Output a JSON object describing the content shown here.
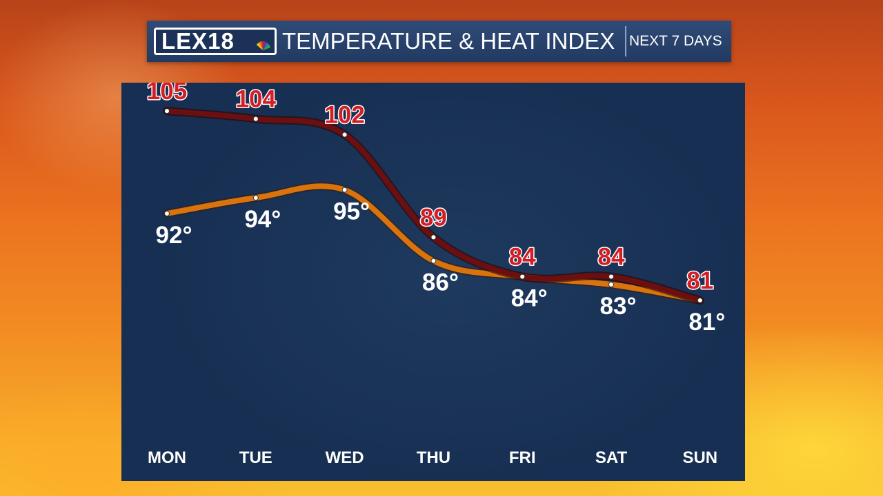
{
  "header": {
    "logo_text": "LEX18",
    "title": "TEMPERATURE & HEAT INDEX",
    "subtitle": "NEXT 7 DAYS"
  },
  "colors": {
    "heat_index_line": "#6b0f10",
    "temperature_line": "#d8730e",
    "heat_index_label": "#d31e26",
    "temperature_label": "#ffffff",
    "panel": "#172f52"
  },
  "chart_data": {
    "type": "line",
    "categories": [
      "MON",
      "TUE",
      "WED",
      "THU",
      "FRI",
      "SAT",
      "SUN"
    ],
    "series": [
      {
        "values": [
          105,
          104,
          102,
          89,
          84,
          84,
          81
        ],
        "labels": [
          "105",
          "104",
          "102",
          "89",
          "84",
          "84",
          "81"
        ]
      },
      {
        "values": [
          92,
          94,
          95,
          86,
          84,
          83,
          81
        ],
        "labels": [
          "92°",
          "94°",
          "95°",
          "86°",
          "84°",
          "83°",
          "81°"
        ]
      }
    ],
    "grid": false,
    "legend": "none"
  }
}
